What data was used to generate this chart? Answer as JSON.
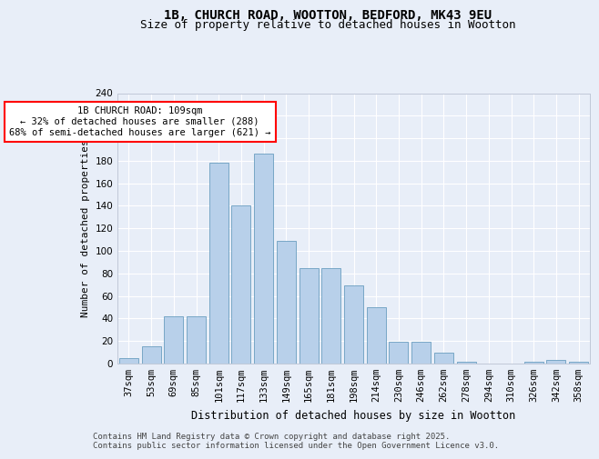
{
  "title_line1": "1B, CHURCH ROAD, WOOTTON, BEDFORD, MK43 9EU",
  "title_line2": "Size of property relative to detached houses in Wootton",
  "xlabel": "Distribution of detached houses by size in Wootton",
  "ylabel": "Number of detached properties",
  "categories": [
    "37sqm",
    "53sqm",
    "69sqm",
    "85sqm",
    "101sqm",
    "117sqm",
    "133sqm",
    "149sqm",
    "165sqm",
    "181sqm",
    "198sqm",
    "214sqm",
    "230sqm",
    "246sqm",
    "262sqm",
    "278sqm",
    "294sqm",
    "310sqm",
    "326sqm",
    "342sqm",
    "358sqm"
  ],
  "values": [
    5,
    15,
    42,
    42,
    178,
    140,
    186,
    109,
    85,
    85,
    69,
    50,
    19,
    19,
    10,
    2,
    0,
    0,
    2,
    3,
    2
  ],
  "bar_color": "#b8d0ea",
  "bar_edge_color": "#6a9ec0",
  "highlight_index": 4,
  "annotation_box_text": "1B CHURCH ROAD: 109sqm\n← 32% of detached houses are smaller (288)\n68% of semi-detached houses are larger (621) →",
  "ylim": [
    0,
    240
  ],
  "yticks": [
    0,
    20,
    40,
    60,
    80,
    100,
    120,
    140,
    160,
    180,
    200,
    220,
    240
  ],
  "background_color": "#e8eef8",
  "plot_bg_color": "#e8eef8",
  "footer_text": "Contains HM Land Registry data © Crown copyright and database right 2025.\nContains public sector information licensed under the Open Government Licence v3.0.",
  "grid_color": "#ffffff",
  "title_fontsize": 10,
  "subtitle_fontsize": 9,
  "ylabel_fontsize": 8,
  "xlabel_fontsize": 8.5,
  "tick_fontsize": 7.5,
  "annot_fontsize": 7.5,
  "footer_fontsize": 6.5
}
